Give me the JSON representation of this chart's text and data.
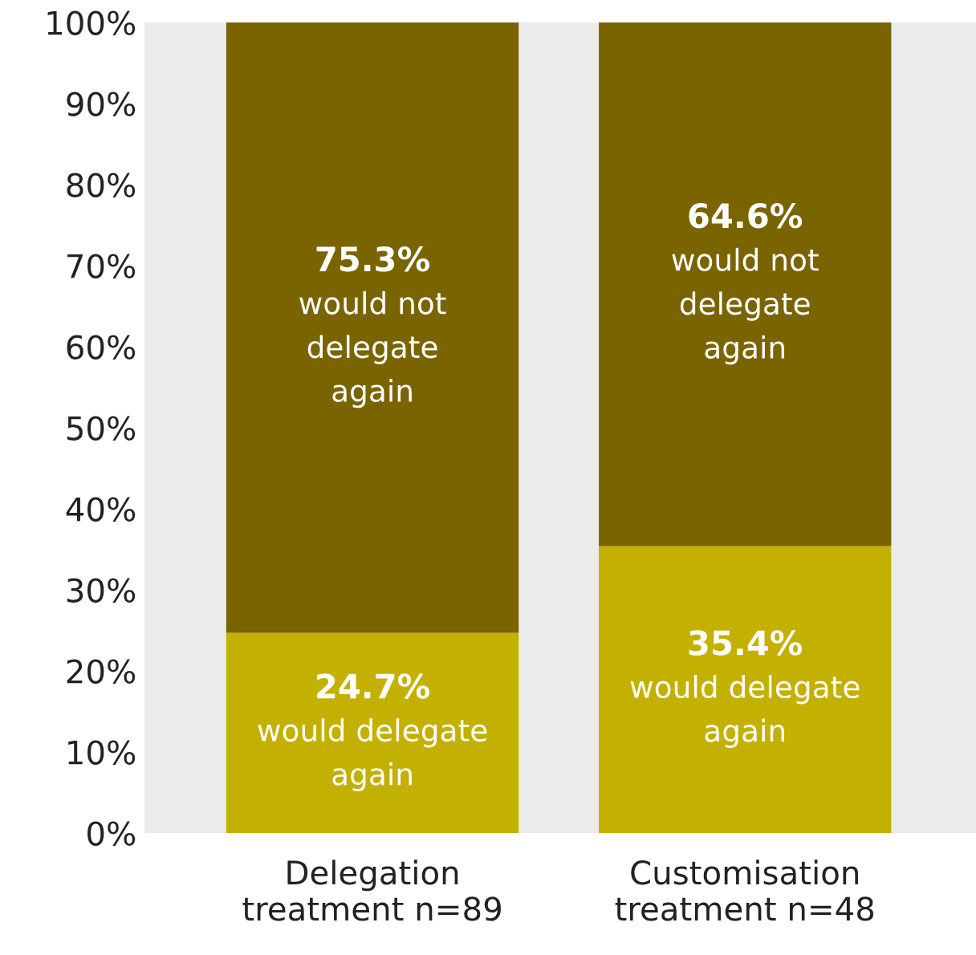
{
  "chart_data": {
    "type": "bar",
    "stacked": true,
    "categories": [
      "Delegation\ntreatment n=89",
      "Customisation\ntreatment n=48"
    ],
    "series": [
      {
        "color": "#c4b000",
        "values": [
          24.7,
          35.4
        ],
        "value_labels": [
          "24.7%\nwould delegate\nagain",
          "35.4%\nwould delegate\nagain"
        ]
      },
      {
        "color": "#7a6400",
        "values": [
          75.3,
          64.6
        ],
        "value_labels": [
          "75.3%\nwould not\ndelegate\nagain",
          "64.6%\nwould not\ndelegate\nagain"
        ]
      }
    ],
    "ylim": [
      0,
      100
    ],
    "yticks": [
      {
        "value": 0,
        "label": "0%"
      },
      {
        "value": 10,
        "label": "10%"
      },
      {
        "value": 20,
        "label": "20%"
      },
      {
        "value": 30,
        "label": "30%"
      },
      {
        "value": 40,
        "label": "40%"
      },
      {
        "value": 50,
        "label": "50%"
      },
      {
        "value": 60,
        "label": "60%"
      },
      {
        "value": 70,
        "label": "70%"
      },
      {
        "value": 80,
        "label": "80%"
      },
      {
        "value": 90,
        "label": "90%"
      },
      {
        "value": 100,
        "label": "100%"
      }
    ],
    "grid": false,
    "legend": false
  }
}
